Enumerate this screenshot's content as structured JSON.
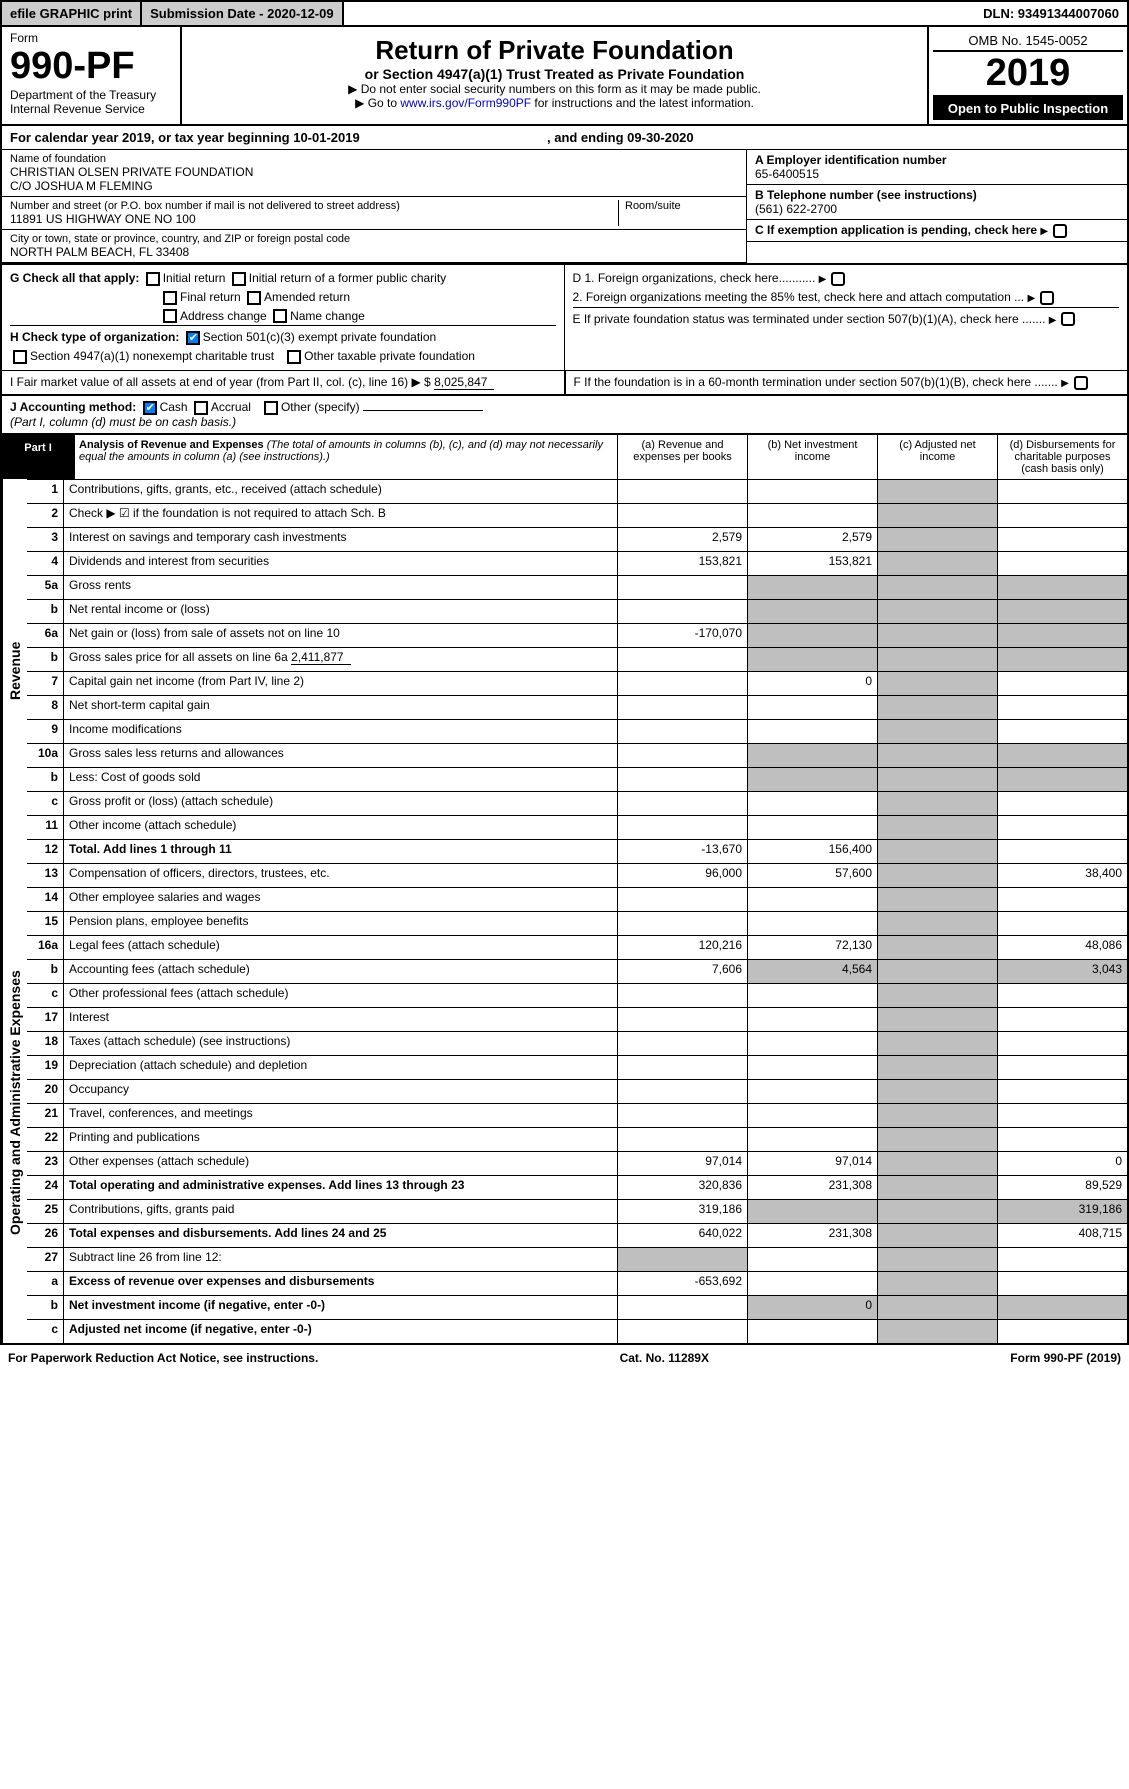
{
  "topbar": {
    "efile": "efile GRAPHIC print",
    "subdate_label": "Submission Date - 2020-12-09",
    "dln": "DLN: 93491344007060"
  },
  "head": {
    "form_label": "Form",
    "form_num": "990-PF",
    "dept1": "Department of the Treasury",
    "dept2": "Internal Revenue Service",
    "title": "Return of Private Foundation",
    "subtitle": "or Section 4947(a)(1) Trust Treated as Private Foundation",
    "instr1": "▶ Do not enter social security numbers on this form as it may be made public.",
    "instr2_pre": "▶ Go to ",
    "instr2_link": "www.irs.gov/Form990PF",
    "instr2_post": " for instructions and the latest information.",
    "omb": "OMB No. 1545-0052",
    "year": "2019",
    "otpi": "Open to Public Inspection"
  },
  "cal": {
    "text": "For calendar year 2019, or tax year beginning 10-01-2019",
    "mid": ", and ending 09-30-2020"
  },
  "entity": {
    "name_label": "Name of foundation",
    "name": "CHRISTIAN OLSEN PRIVATE FOUNDATION",
    "co": "C/O JOSHUA M FLEMING",
    "addr_label": "Number and street (or P.O. box number if mail is not delivered to street address)",
    "room_label": "Room/suite",
    "addr": "11891 US HIGHWAY ONE NO 100",
    "city_label": "City or town, state or province, country, and ZIP or foreign postal code",
    "city": "NORTH PALM BEACH, FL  33408",
    "ein_label": "A Employer identification number",
    "ein": "65-6400515",
    "tel_label": "B Telephone number (see instructions)",
    "tel": "(561) 622-2700",
    "c_label": "C If exemption application is pending, check here",
    "d1": "D 1. Foreign organizations, check here...........",
    "d2": "2. Foreign organizations meeting the 85% test, check here and attach computation ...",
    "e": "E If private foundation status was terminated under section 507(b)(1)(A), check here .......",
    "f": "F If the foundation is in a 60-month termination under section 507(b)(1)(B), check here ......."
  },
  "g": {
    "label": "G Check all that apply:",
    "o1": "Initial return",
    "o2": "Initial return of a former public charity",
    "o3": "Final return",
    "o4": "Amended return",
    "o5": "Address change",
    "o6": "Name change"
  },
  "h": {
    "label": "H Check type of organization:",
    "o1": "Section 501(c)(3) exempt private foundation",
    "o2": "Section 4947(a)(1) nonexempt charitable trust",
    "o3": "Other taxable private foundation"
  },
  "i": {
    "label": "I Fair market value of all assets at end of year (from Part II, col. (c), line 16) ▶ $",
    "val": "8,025,847"
  },
  "j": {
    "label": "J Accounting method:",
    "o1": "Cash",
    "o2": "Accrual",
    "o3": "Other (specify)",
    "note": "(Part I, column (d) must be on cash basis.)"
  },
  "part1": {
    "label": "Part I",
    "title": "Analysis of Revenue and Expenses",
    "sub": "(The total of amounts in columns (b), (c), and (d) may not necessarily equal the amounts in column (a) (see instructions).)",
    "cols": {
      "a": "(a) Revenue and expenses per books",
      "b": "(b) Net investment income",
      "c": "(c) Adjusted net income",
      "d": "(d) Disbursements for charitable purposes (cash basis only)"
    }
  },
  "sections": {
    "rev": "Revenue",
    "exp": "Operating and Administrative Expenses"
  },
  "lines": [
    {
      "n": "1",
      "t": "Contributions, gifts, grants, etc., received (attach schedule)"
    },
    {
      "n": "2",
      "t": "Check ▶ ☑ if the foundation is not required to attach Sch. B"
    },
    {
      "n": "3",
      "t": "Interest on savings and temporary cash investments",
      "a": "2,579",
      "b": "2,579"
    },
    {
      "n": "4",
      "t": "Dividends and interest from securities",
      "a": "153,821",
      "b": "153,821"
    },
    {
      "n": "5a",
      "t": "Gross rents"
    },
    {
      "n": "b",
      "t": "Net rental income or (loss)"
    },
    {
      "n": "6a",
      "t": "Net gain or (loss) from sale of assets not on line 10",
      "a": "-170,070"
    },
    {
      "n": "b",
      "t": "Gross sales price for all assets on line 6a",
      "inline": "2,411,877"
    },
    {
      "n": "7",
      "t": "Capital gain net income (from Part IV, line 2)",
      "b": "0"
    },
    {
      "n": "8",
      "t": "Net short-term capital gain"
    },
    {
      "n": "9",
      "t": "Income modifications"
    },
    {
      "n": "10a",
      "t": "Gross sales less returns and allowances"
    },
    {
      "n": "b",
      "t": "Less: Cost of goods sold"
    },
    {
      "n": "c",
      "t": "Gross profit or (loss) (attach schedule)"
    },
    {
      "n": "11",
      "t": "Other income (attach schedule)"
    },
    {
      "n": "12",
      "t": "Total. Add lines 1 through 11",
      "a": "-13,670",
      "b": "156,400",
      "bold": true
    },
    {
      "n": "13",
      "t": "Compensation of officers, directors, trustees, etc.",
      "a": "96,000",
      "b": "57,600",
      "d": "38,400"
    },
    {
      "n": "14",
      "t": "Other employee salaries and wages"
    },
    {
      "n": "15",
      "t": "Pension plans, employee benefits"
    },
    {
      "n": "16a",
      "t": "Legal fees (attach schedule)",
      "a": "120,216",
      "b": "72,130",
      "d": "48,086"
    },
    {
      "n": "b",
      "t": "Accounting fees (attach schedule)",
      "a": "7,606",
      "b": "4,564",
      "d": "3,043"
    },
    {
      "n": "c",
      "t": "Other professional fees (attach schedule)"
    },
    {
      "n": "17",
      "t": "Interest"
    },
    {
      "n": "18",
      "t": "Taxes (attach schedule) (see instructions)"
    },
    {
      "n": "19",
      "t": "Depreciation (attach schedule) and depletion"
    },
    {
      "n": "20",
      "t": "Occupancy"
    },
    {
      "n": "21",
      "t": "Travel, conferences, and meetings"
    },
    {
      "n": "22",
      "t": "Printing and publications"
    },
    {
      "n": "23",
      "t": "Other expenses (attach schedule)",
      "a": "97,014",
      "b": "97,014",
      "d": "0"
    },
    {
      "n": "24",
      "t": "Total operating and administrative expenses. Add lines 13 through 23",
      "a": "320,836",
      "b": "231,308",
      "d": "89,529",
      "bold": true
    },
    {
      "n": "25",
      "t": "Contributions, gifts, grants paid",
      "a": "319,186",
      "d": "319,186"
    },
    {
      "n": "26",
      "t": "Total expenses and disbursements. Add lines 24 and 25",
      "a": "640,022",
      "b": "231,308",
      "d": "408,715",
      "bold": true
    },
    {
      "n": "27",
      "t": "Subtract line 26 from line 12:"
    },
    {
      "n": "a",
      "t": "Excess of revenue over expenses and disbursements",
      "a": "-653,692",
      "bold": true
    },
    {
      "n": "b",
      "t": "Net investment income (if negative, enter -0-)",
      "b": "0",
      "bold": true
    },
    {
      "n": "c",
      "t": "Adjusted net income (if negative, enter -0-)",
      "bold": true
    }
  ],
  "footer": {
    "pra": "For Paperwork Reduction Act Notice, see instructions.",
    "cat": "Cat. No. 11289X",
    "form": "Form 990-PF (2019)"
  }
}
